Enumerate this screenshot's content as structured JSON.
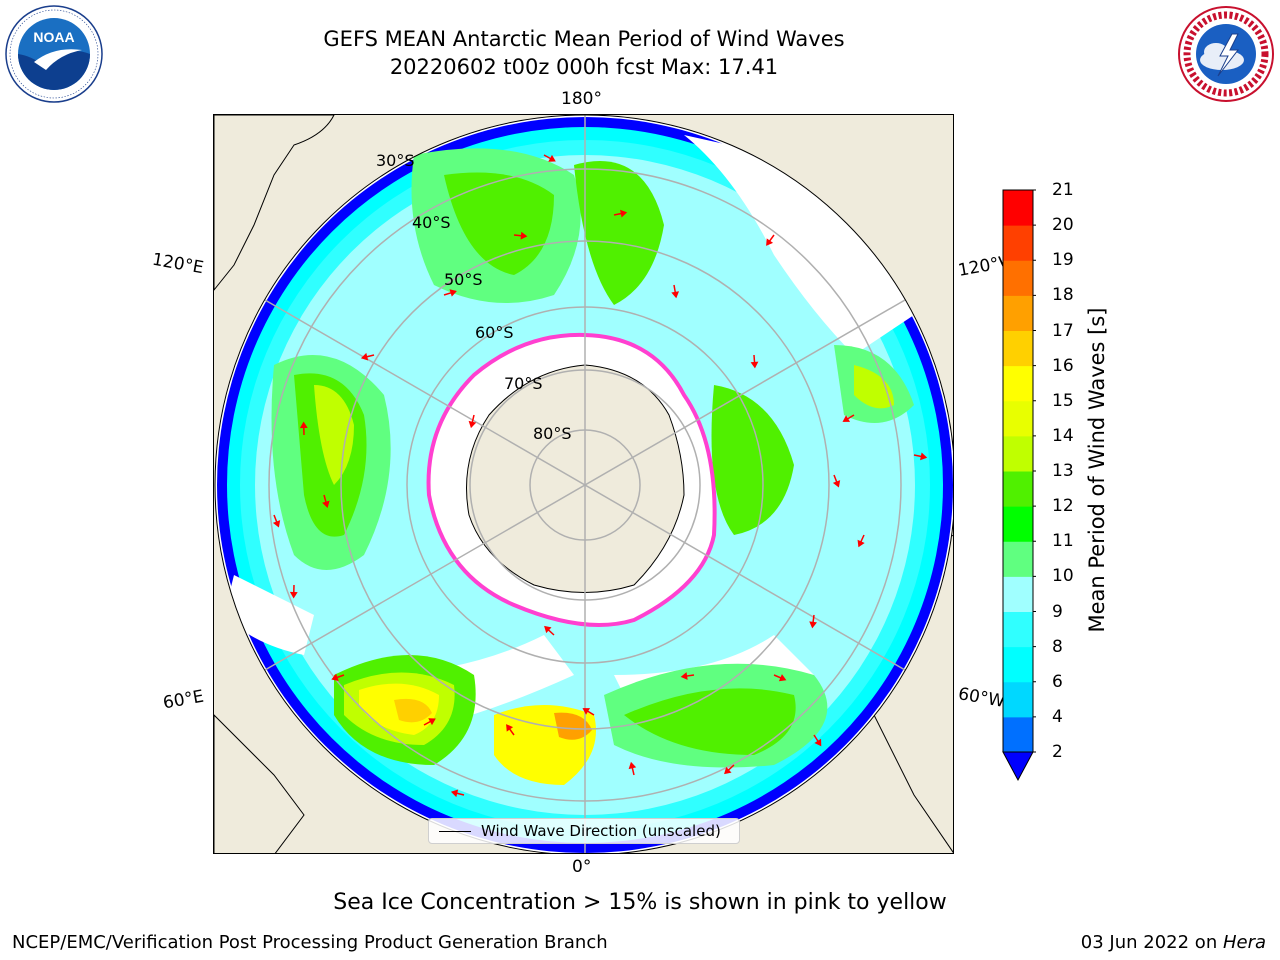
{
  "title_line1": "GEFS MEAN Antarctic Mean Period of Wind Waves",
  "title_line2": "20220602 t00z 000h fcst   Max: 17.41",
  "logos": {
    "left": "NOAA",
    "right": "NATIONAL WEATHER SERVICE"
  },
  "map": {
    "lon_labels": {
      "top": "180°",
      "bottom": "0°",
      "left_upper": "120°E",
      "left_lower": "60°E",
      "right_upper": "120°W",
      "right_lower": "60°W"
    },
    "lat_labels": [
      "30°S",
      "40°S",
      "50°S",
      "60°S",
      "70°S",
      "80°S"
    ],
    "legend": "Wind Wave Direction (unscaled)"
  },
  "colorbar": {
    "label": "Mean Period of Wind Waves [s]",
    "ticks": [
      "2",
      "4",
      "6",
      "8",
      "9",
      "10",
      "11",
      "12",
      "13",
      "14",
      "15",
      "16",
      "17",
      "18",
      "19",
      "20",
      "21"
    ],
    "colors": [
      "#0000ff",
      "#0070ff",
      "#00d8ff",
      "#00ffff",
      "#30ffff",
      "#a0ffff",
      "#60ff80",
      "#00ff00",
      "#50f000",
      "#c0ff00",
      "#e8ff00",
      "#ffff00",
      "#ffd000",
      "#ffa000",
      "#ff7000",
      "#ff4000",
      "#ff0000"
    ]
  },
  "note": "Sea Ice Concentration > 15% is shown in pink to yellow",
  "footer_left": "NCEP/EMC/Verification Post Processing Product Generation Branch",
  "footer_right_date": "03 Jun 2022 on ",
  "footer_right_host": "Hera"
}
